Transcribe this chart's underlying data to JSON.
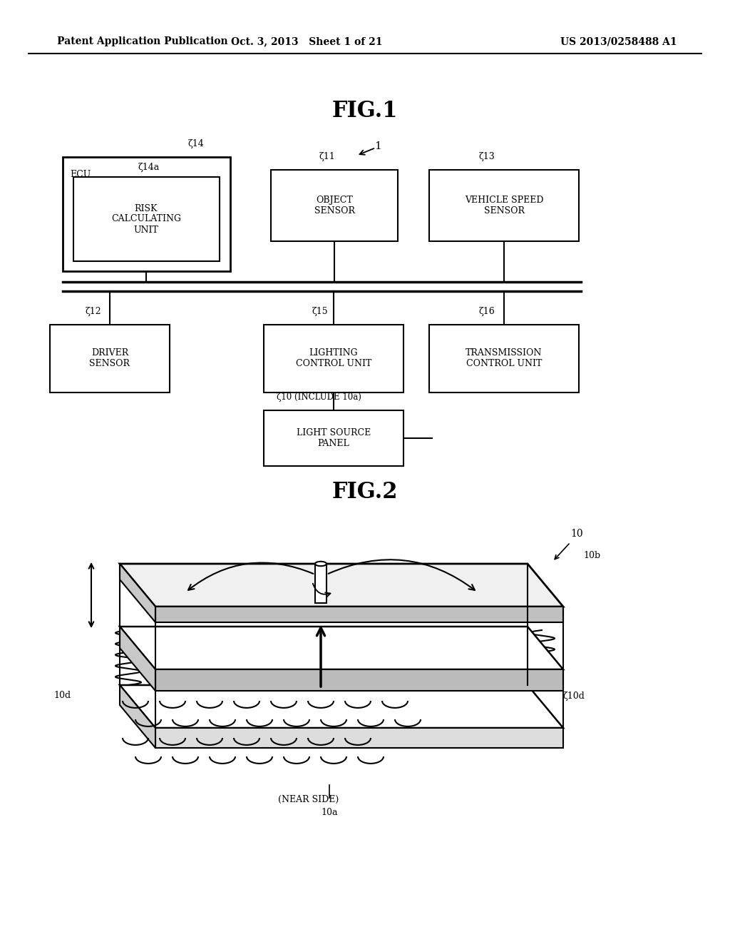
{
  "bg_color": "#ffffff",
  "header_left": "Patent Application Publication",
  "header_mid": "Oct. 3, 2013   Sheet 1 of 21",
  "header_right": "US 2013/0258488 A1",
  "fig1_title": "FIG.1",
  "fig2_title": "FIG.2"
}
